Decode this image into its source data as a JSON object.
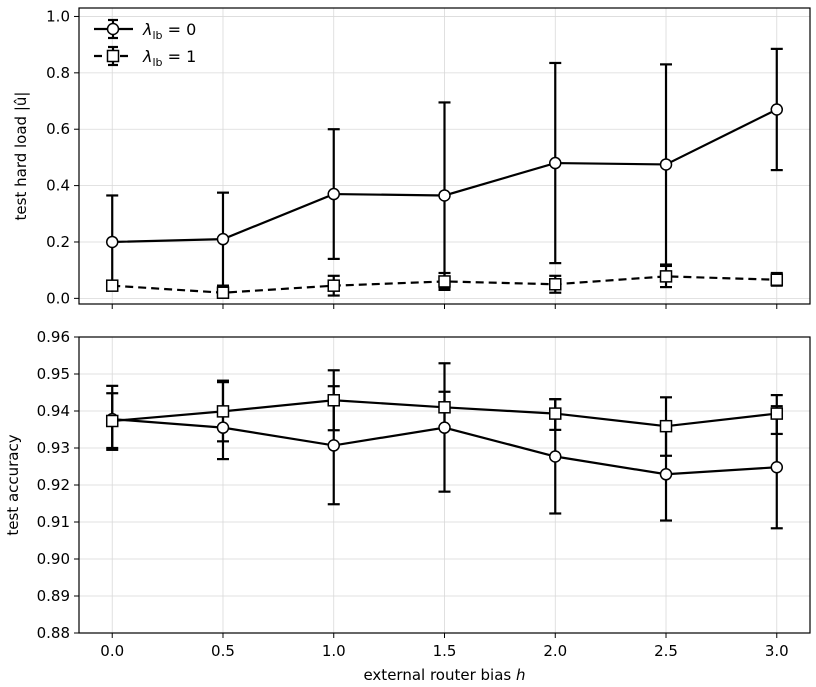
{
  "chart_data": [
    {
      "type": "line",
      "x": [
        0.0,
        0.5,
        1.0,
        1.5,
        2.0,
        2.5,
        3.0
      ],
      "xticks": [
        "0.0",
        "0.5",
        "1.0",
        "1.5",
        "2.0",
        "2.5",
        "3.0"
      ],
      "xlim": [
        -0.15,
        3.15
      ],
      "ylabel": "test hard load |û|",
      "ylim": [
        -0.02,
        1.03
      ],
      "yticks": [
        "0.0",
        "0.2",
        "0.4",
        "0.6",
        "0.8",
        "1.0"
      ],
      "grid": true,
      "legend_position": "top-left",
      "series": [
        {
          "name": "λ_lb = 0",
          "legend_symbol": "λ",
          "legend_subscript": "lb",
          "legend_suffix": " = 0",
          "marker": "circle",
          "line_style": "solid",
          "values": [
            0.2,
            0.21,
            0.37,
            0.365,
            0.48,
            0.475,
            0.67
          ],
          "err_low": [
            0.035,
            0.045,
            0.14,
            0.035,
            0.125,
            0.12,
            0.455
          ],
          "err_high": [
            0.365,
            0.375,
            0.6,
            0.695,
            0.835,
            0.83,
            0.885
          ]
        },
        {
          "name": "λ_lb = 1",
          "legend_symbol": "λ",
          "legend_subscript": "lb",
          "legend_suffix": " = 1",
          "marker": "square",
          "line_style": "dashed",
          "values": [
            0.045,
            0.02,
            0.045,
            0.06,
            0.05,
            0.078,
            0.066
          ],
          "err_low": [
            0.03,
            0.005,
            0.01,
            0.03,
            0.02,
            0.04,
            0.045
          ],
          "err_high": [
            0.06,
            0.045,
            0.08,
            0.09,
            0.08,
            0.115,
            0.09
          ]
        }
      ]
    },
    {
      "type": "line",
      "x": [
        0.0,
        0.5,
        1.0,
        1.5,
        2.0,
        2.5,
        3.0
      ],
      "xticks": [
        "0.0",
        "0.5",
        "1.0",
        "1.5",
        "2.0",
        "2.5",
        "3.0"
      ],
      "xlim": [
        -0.15,
        3.15
      ],
      "xlabel": "external router bias h",
      "ylabel": "test accuracy",
      "ylim": [
        0.88,
        0.96
      ],
      "yticks": [
        "0.88",
        "0.89",
        "0.90",
        "0.91",
        "0.92",
        "0.93",
        "0.94",
        "0.95",
        "0.96"
      ],
      "grid": true,
      "series": [
        {
          "marker": "circle",
          "line_style": "solid",
          "values": [
            0.9378,
            0.9355,
            0.9307,
            0.9355,
            0.9277,
            0.9229,
            0.9248
          ],
          "err_low": [
            0.9295,
            0.927,
            0.9148,
            0.9182,
            0.9123,
            0.9104,
            0.9083
          ],
          "err_high": [
            0.9468,
            0.9482,
            0.9467,
            0.9529,
            0.9432,
            0.9354,
            0.9413
          ]
        },
        {
          "marker": "square",
          "line_style": "solid",
          "values": [
            0.9373,
            0.9399,
            0.9429,
            0.941,
            0.9393,
            0.9359,
            0.9393
          ],
          "err_low": [
            0.93,
            0.9318,
            0.9348,
            0.9358,
            0.9349,
            0.9279,
            0.9338
          ],
          "err_high": [
            0.9448,
            0.9478,
            0.951,
            0.9452,
            0.9432,
            0.9437,
            0.9443
          ]
        }
      ]
    }
  ]
}
